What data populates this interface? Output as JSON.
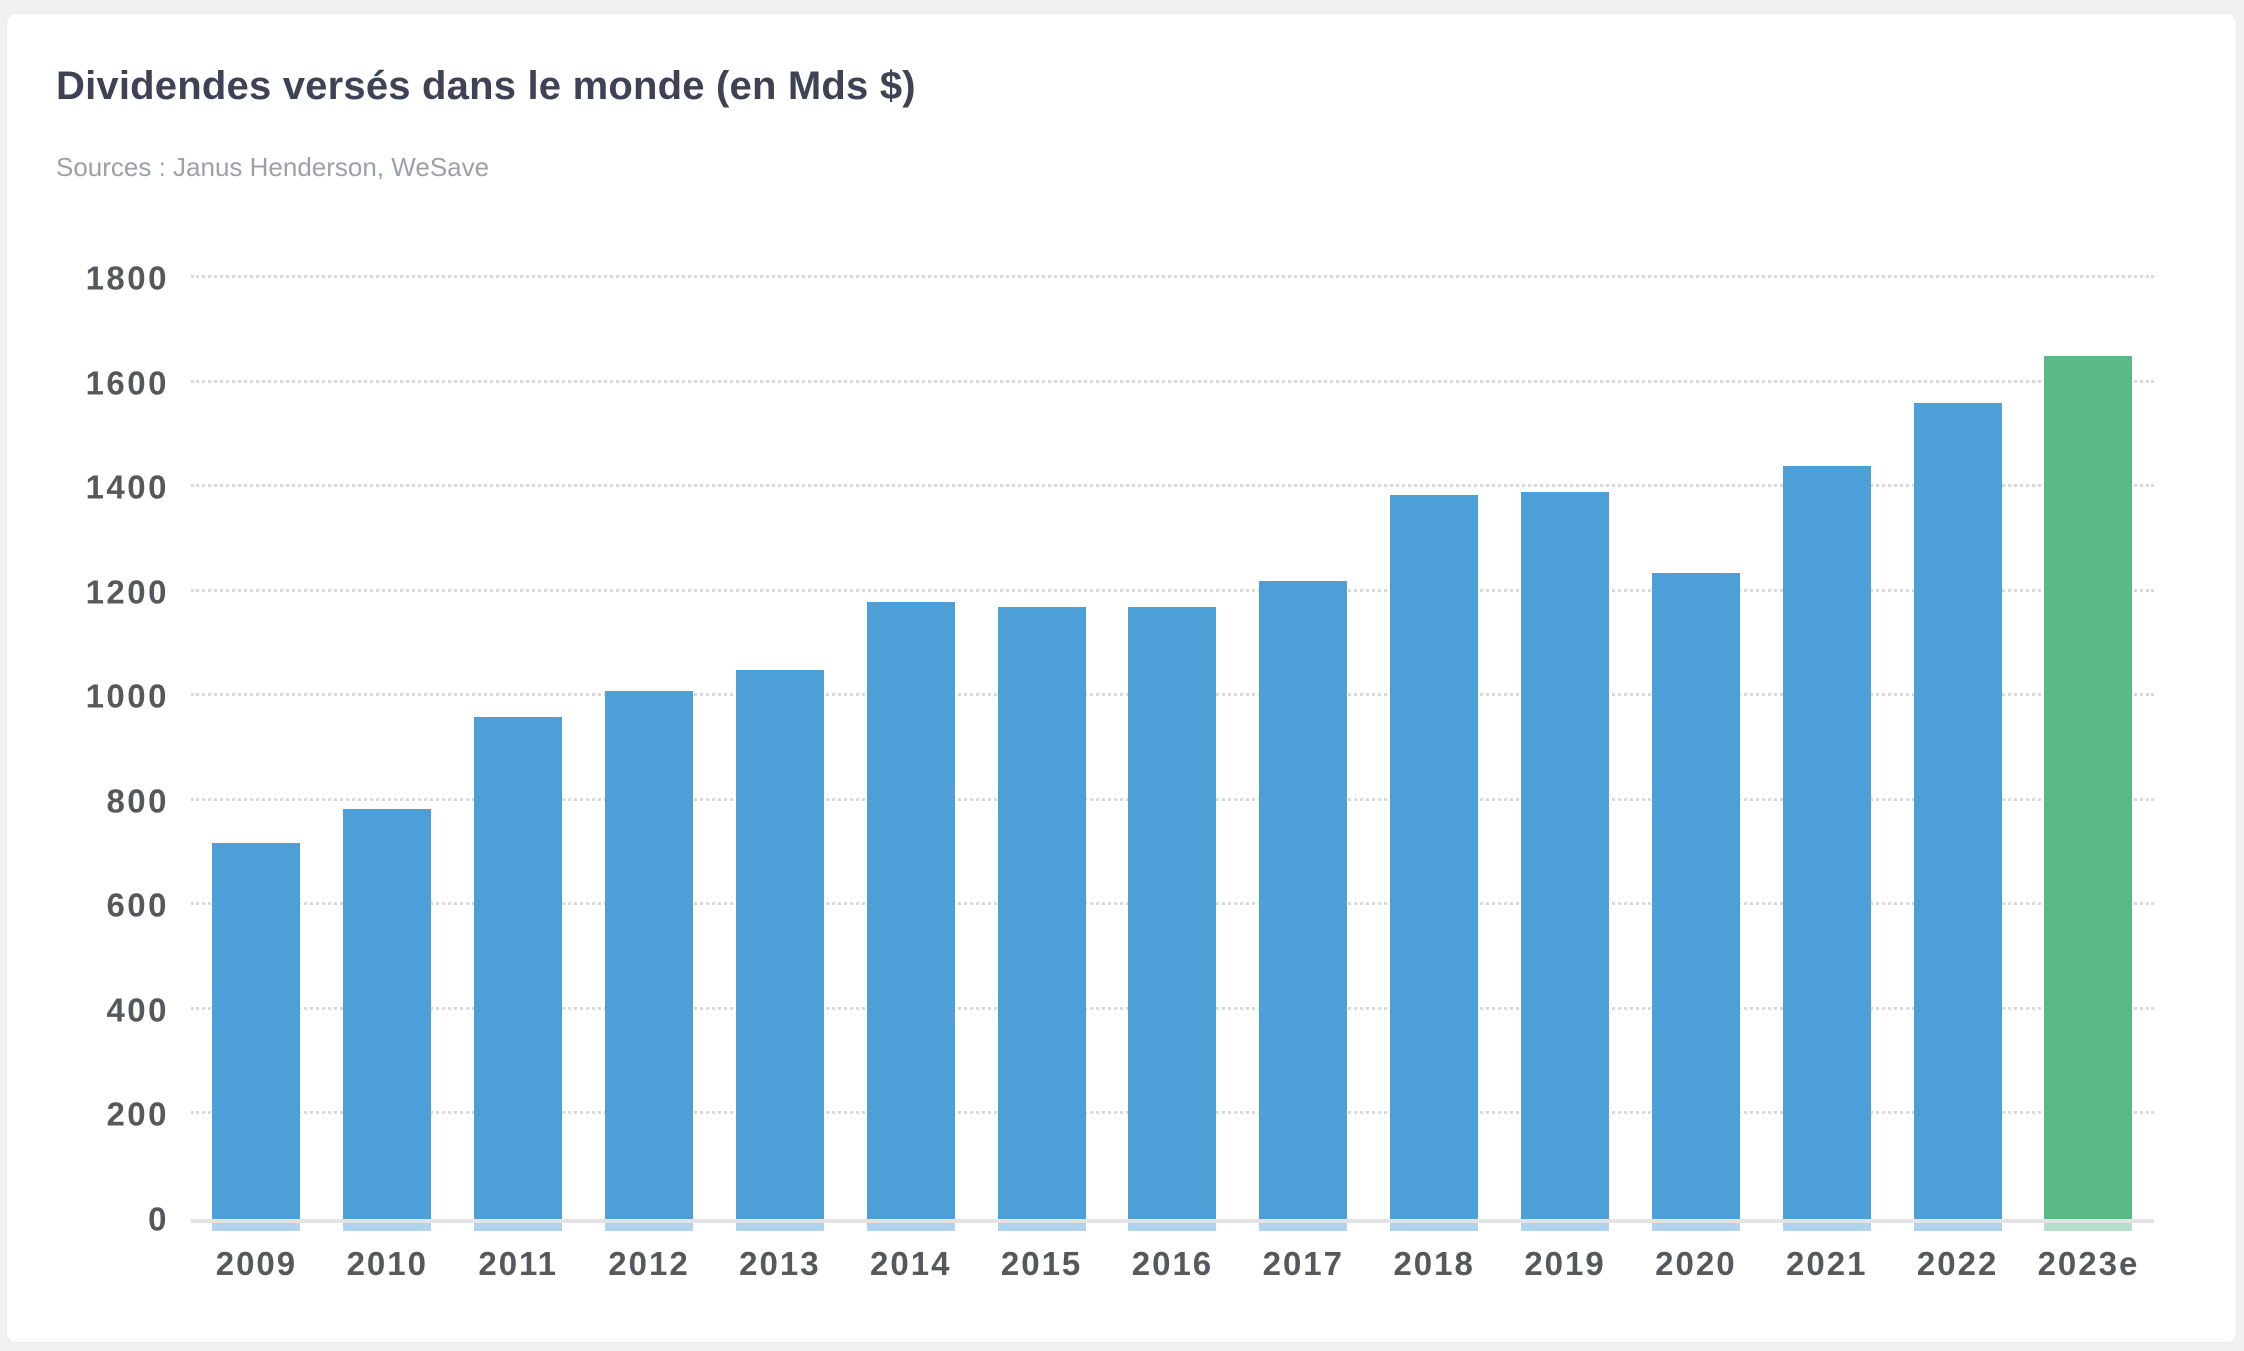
{
  "card": {
    "title": "Dividendes versés dans le monde (en Mds $)",
    "subtitle": "Sources : Janus Henderson, WeSave"
  },
  "chart_data": {
    "type": "bar",
    "title": "Dividendes versés dans le monde (en Mds $)",
    "source_note": "Sources : Janus Henderson, WeSave",
    "categories": [
      "2009",
      "2010",
      "2011",
      "2012",
      "2013",
      "2014",
      "2015",
      "2016",
      "2017",
      "2018",
      "2019",
      "2020",
      "2021",
      "2022",
      "2023e"
    ],
    "values": [
      720,
      785,
      960,
      1010,
      1050,
      1180,
      1170,
      1170,
      1220,
      1385,
      1390,
      1235,
      1440,
      1560,
      1650
    ],
    "ylabel": "",
    "xlabel": "",
    "ylim": [
      0,
      1800
    ],
    "yticks": [
      0,
      200,
      400,
      600,
      800,
      1000,
      1200,
      1400,
      1600,
      1800
    ],
    "grid": "horizontal-dotted",
    "legend": "none",
    "bar_color": "#4d9fd7",
    "highlight_color": "#5cb884",
    "highlight_index": 14,
    "highlight_meaning": "2023e is an estimate, shown in green"
  },
  "colors": {
    "page_background": "#f1f1f3",
    "card_background": "#ffffff",
    "title_text": "#3f4254",
    "subtitle_text": "#9da0a8",
    "tick_text": "#57585c",
    "gridline": "#d9d9db",
    "axis_line": "#e3e3e5"
  }
}
